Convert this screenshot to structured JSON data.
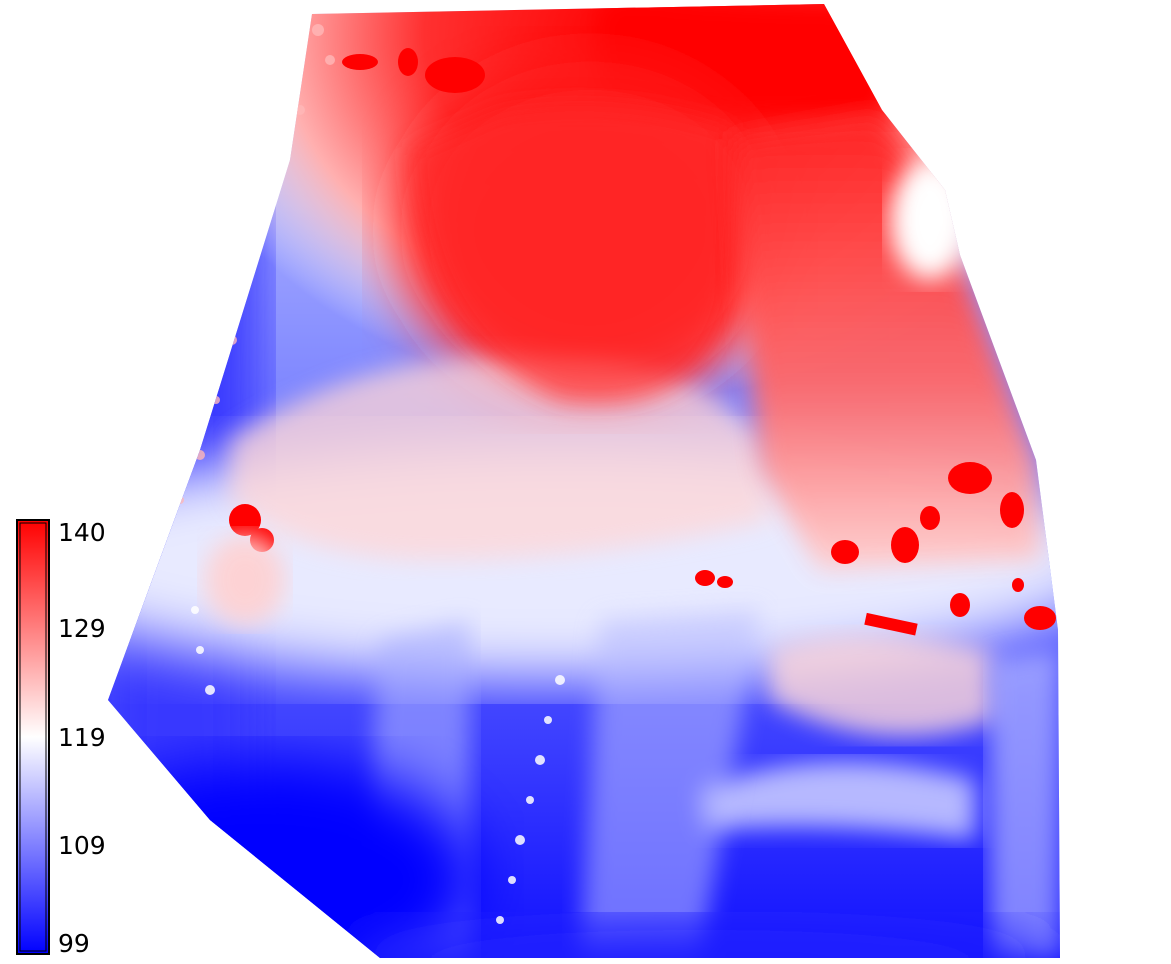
{
  "colormap": {
    "stops": [
      "#0000ff",
      "#ffffff",
      "#ff0000"
    ],
    "min": 99,
    "max": 140
  },
  "colorbar": {
    "tick_labels": [
      "140",
      "129",
      "119",
      "109",
      "99"
    ]
  }
}
